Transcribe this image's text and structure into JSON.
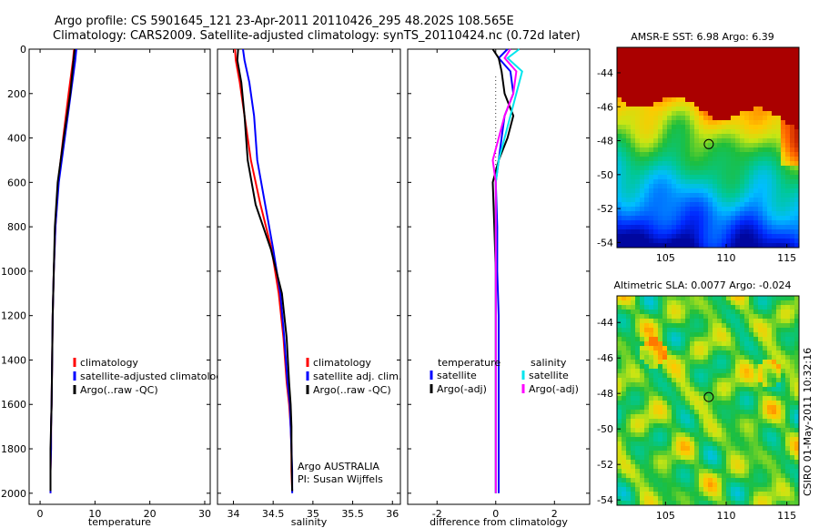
{
  "header": {
    "line1": "Argo profile: CS 5901645_121 23-Apr-2011 20110426_295 48.202S 108.565E",
    "line2": "Climatology: CARS2009. Satellite-adjusted climatology: synTS_20110424.nc (0.72d later)"
  },
  "credit": "CSIRO 01-May-2011 10:32:16",
  "colors": {
    "climatology": "#ff0000",
    "satellite": "#0000ff",
    "argo": "#000000",
    "sat_diff_s": "#00e5ee",
    "argo_diff_s": "#ff00ff"
  },
  "chart_data": [
    {
      "type": "line",
      "id": "temperature",
      "xlabel": "temperature",
      "ylabel": "",
      "xlim": [
        -2,
        31
      ],
      "ylim": [
        0,
        2050
      ],
      "y_reversed": true,
      "xticks": [
        0,
        10,
        20,
        30
      ],
      "xtick_labels": [
        "0",
        "10",
        "20",
        "30"
      ],
      "yticks": [
        0,
        200,
        400,
        600,
        800,
        1000,
        1200,
        1400,
        1600,
        1800,
        2000
      ],
      "ytick_labels": [
        "0",
        "200",
        "400",
        "600",
        "800",
        "1000",
        "1200",
        "1400",
        "1600",
        "1800",
        "2000"
      ],
      "legend": {
        "placement": "lower-right",
        "entries": [
          "climatology",
          "satellite-adjusted climatology",
          "Argo(..raw -QC)"
        ]
      },
      "series": [
        {
          "name": "climatology",
          "color": "#ff0000",
          "x": [
            6.2,
            6.0,
            5.2,
            4.2,
            3.3,
            2.8,
            2.5,
            2.3,
            2.2,
            2.1,
            2.0,
            2.0,
            1.9,
            1.9
          ],
          "y": [
            0,
            50,
            200,
            400,
            600,
            800,
            1000,
            1200,
            1400,
            1600,
            1700,
            1800,
            1900,
            2000
          ]
        },
        {
          "name": "satellite-adjusted climatology",
          "color": "#0000ff",
          "x": [
            6.6,
            6.4,
            5.6,
            4.5,
            3.4,
            2.8,
            2.5,
            2.3,
            2.2,
            2.1,
            2.0,
            2.0,
            1.9,
            1.9
          ],
          "y": [
            0,
            50,
            200,
            400,
            600,
            800,
            1000,
            1200,
            1400,
            1600,
            1700,
            1800,
            1900,
            2000
          ]
        },
        {
          "name": "Argo(..raw -QC)",
          "color": "#000000",
          "x": [
            6.3,
            6.1,
            5.5,
            4.3,
            3.2,
            2.7,
            2.5,
            2.3,
            2.2,
            2.1,
            2.0,
            1.9,
            1.9,
            1.9
          ],
          "y": [
            0,
            50,
            200,
            400,
            600,
            800,
            1000,
            1200,
            1400,
            1600,
            1700,
            1800,
            1900,
            1990
          ]
        }
      ]
    },
    {
      "type": "line",
      "id": "salinity",
      "xlabel": "salinity",
      "xlim": [
        33.8,
        36.1
      ],
      "ylim": [
        0,
        2050
      ],
      "y_reversed": true,
      "xticks": [
        34,
        34.5,
        35,
        35.5,
        36
      ],
      "xtick_labels": [
        "34",
        "34.5",
        "35",
        "35.5",
        "36"
      ],
      "legend": {
        "placement": "lower-right",
        "entries": [
          "climatology",
          "satellite adj. clim.",
          "Argo(..raw -QC)"
        ]
      },
      "annotation": [
        "Argo AUSTRALIA",
        "PI: Susan Wijffels"
      ],
      "series": [
        {
          "name": "climatology",
          "color": "#ff0000",
          "x": [
            34.02,
            34.03,
            34.08,
            34.14,
            34.22,
            34.34,
            34.48,
            34.57,
            34.63,
            34.67,
            34.7,
            34.72,
            34.73,
            34.73,
            34.74
          ],
          "y": [
            0,
            50,
            150,
            300,
            500,
            700,
            900,
            1100,
            1300,
            1500,
            1600,
            1700,
            1800,
            1900,
            1990
          ]
        },
        {
          "name": "satellite adj. clim.",
          "color": "#0000ff",
          "x": [
            34.12,
            34.14,
            34.2,
            34.26,
            34.3,
            34.4,
            34.5,
            34.59,
            34.64,
            34.68,
            34.71,
            34.72,
            34.73,
            34.74,
            34.74
          ],
          "y": [
            0,
            50,
            150,
            300,
            500,
            700,
            900,
            1100,
            1300,
            1500,
            1600,
            1700,
            1800,
            1900,
            2000
          ]
        },
        {
          "name": "Argo(..raw -QC)",
          "color": "#000000",
          "x": [
            34.06,
            34.05,
            34.1,
            34.14,
            34.18,
            34.28,
            34.47,
            34.61,
            34.67,
            34.7,
            34.72,
            34.73,
            34.73,
            34.74
          ],
          "y": [
            0,
            50,
            150,
            300,
            500,
            700,
            900,
            1100,
            1300,
            1500,
            1600,
            1700,
            1800,
            1990
          ]
        }
      ]
    },
    {
      "type": "line",
      "id": "difference",
      "xlabel": "difference from climatology",
      "xlim": [
        -3,
        3.2
      ],
      "ylim": [
        0,
        2050
      ],
      "y_reversed": true,
      "xticks": [
        -2,
        0,
        2
      ],
      "xtick_labels": [
        "-2",
        "0",
        "2"
      ],
      "legend": {
        "placement": "lower-center",
        "entries": [
          "temperature",
          "satellite",
          "Argo(-adj)",
          "salinity",
          "satellite",
          "Argo(-adj)"
        ]
      },
      "series": [
        {
          "name": "satellite",
          "color": "#0000ff",
          "x": [
            0.4,
            0.1,
            0.5,
            0.6,
            0.3,
            0.2,
            0.1,
            0.0,
            0.05,
            0.05,
            0.1,
            0.1,
            0.1,
            0.1,
            0.1
          ],
          "y": [
            0,
            40,
            100,
            200,
            300,
            400,
            500,
            600,
            800,
            1000,
            1200,
            1400,
            1600,
            1800,
            2000
          ]
        },
        {
          "name": "Argo(-adj)",
          "color": "#000000",
          "x": [
            -0.1,
            0.1,
            0.2,
            0.3,
            0.6,
            0.4,
            0.1,
            -0.1,
            -0.05,
            0.0,
            0.0,
            0.0,
            0.0,
            0.0,
            0.0
          ],
          "y": [
            0,
            40,
            100,
            200,
            300,
            400,
            500,
            600,
            800,
            1000,
            1200,
            1400,
            1600,
            1800,
            2000
          ]
        },
        {
          "name": "satellite",
          "color": "#00e5ee",
          "x": [
            0.8,
            0.4,
            0.9,
            0.7,
            0.5,
            0.3,
            0.1,
            0.0,
            0.0,
            0.0,
            0.0,
            0.0,
            0.0,
            0.0,
            0.0
          ],
          "y": [
            0,
            40,
            100,
            200,
            300,
            400,
            500,
            600,
            800,
            1000,
            1200,
            1400,
            1600,
            1800,
            2000
          ]
        },
        {
          "name": "Argo(-adj)",
          "color": "#ff00ff",
          "x": [
            0.5,
            0.3,
            0.7,
            0.6,
            0.3,
            0.1,
            -0.1,
            0.0,
            0.0,
            0.0,
            0.0,
            0.0,
            0.0,
            0.0,
            0.0
          ],
          "y": [
            0,
            40,
            100,
            200,
            300,
            400,
            500,
            600,
            800,
            1000,
            1200,
            1400,
            1600,
            1800,
            2000
          ]
        }
      ]
    },
    {
      "type": "heatmap",
      "id": "sst",
      "title": "AMSR-E SST: 6.98 Argo: 6.39",
      "xlim": [
        101,
        116
      ],
      "ylim": [
        -54.3,
        -42.5
      ],
      "xticks": [
        105,
        110,
        115
      ],
      "xtick_labels": [
        "105",
        "110",
        "115"
      ],
      "yticks": [
        -44,
        -46,
        -48,
        -50,
        -52,
        -54
      ],
      "ytick_labels": [
        "-44",
        "-46",
        "-48",
        "-50",
        "-52",
        "-54"
      ],
      "marker": {
        "lon": 108.565,
        "lat": -48.202
      }
    },
    {
      "type": "heatmap",
      "id": "sla",
      "title": "Altimetric SLA: 0.0077 Argo: -0.024",
      "xlim": [
        101,
        116
      ],
      "ylim": [
        -54.3,
        -42.5
      ],
      "xticks": [
        105,
        110,
        115
      ],
      "xtick_labels": [
        "105",
        "110",
        "115"
      ],
      "yticks": [
        -44,
        -46,
        -48,
        -50,
        -52,
        -54
      ],
      "ytick_labels": [
        "-44",
        "-46",
        "-48",
        "-50",
        "-52",
        "-54"
      ],
      "marker": {
        "lon": 108.565,
        "lat": -48.202
      }
    }
  ]
}
